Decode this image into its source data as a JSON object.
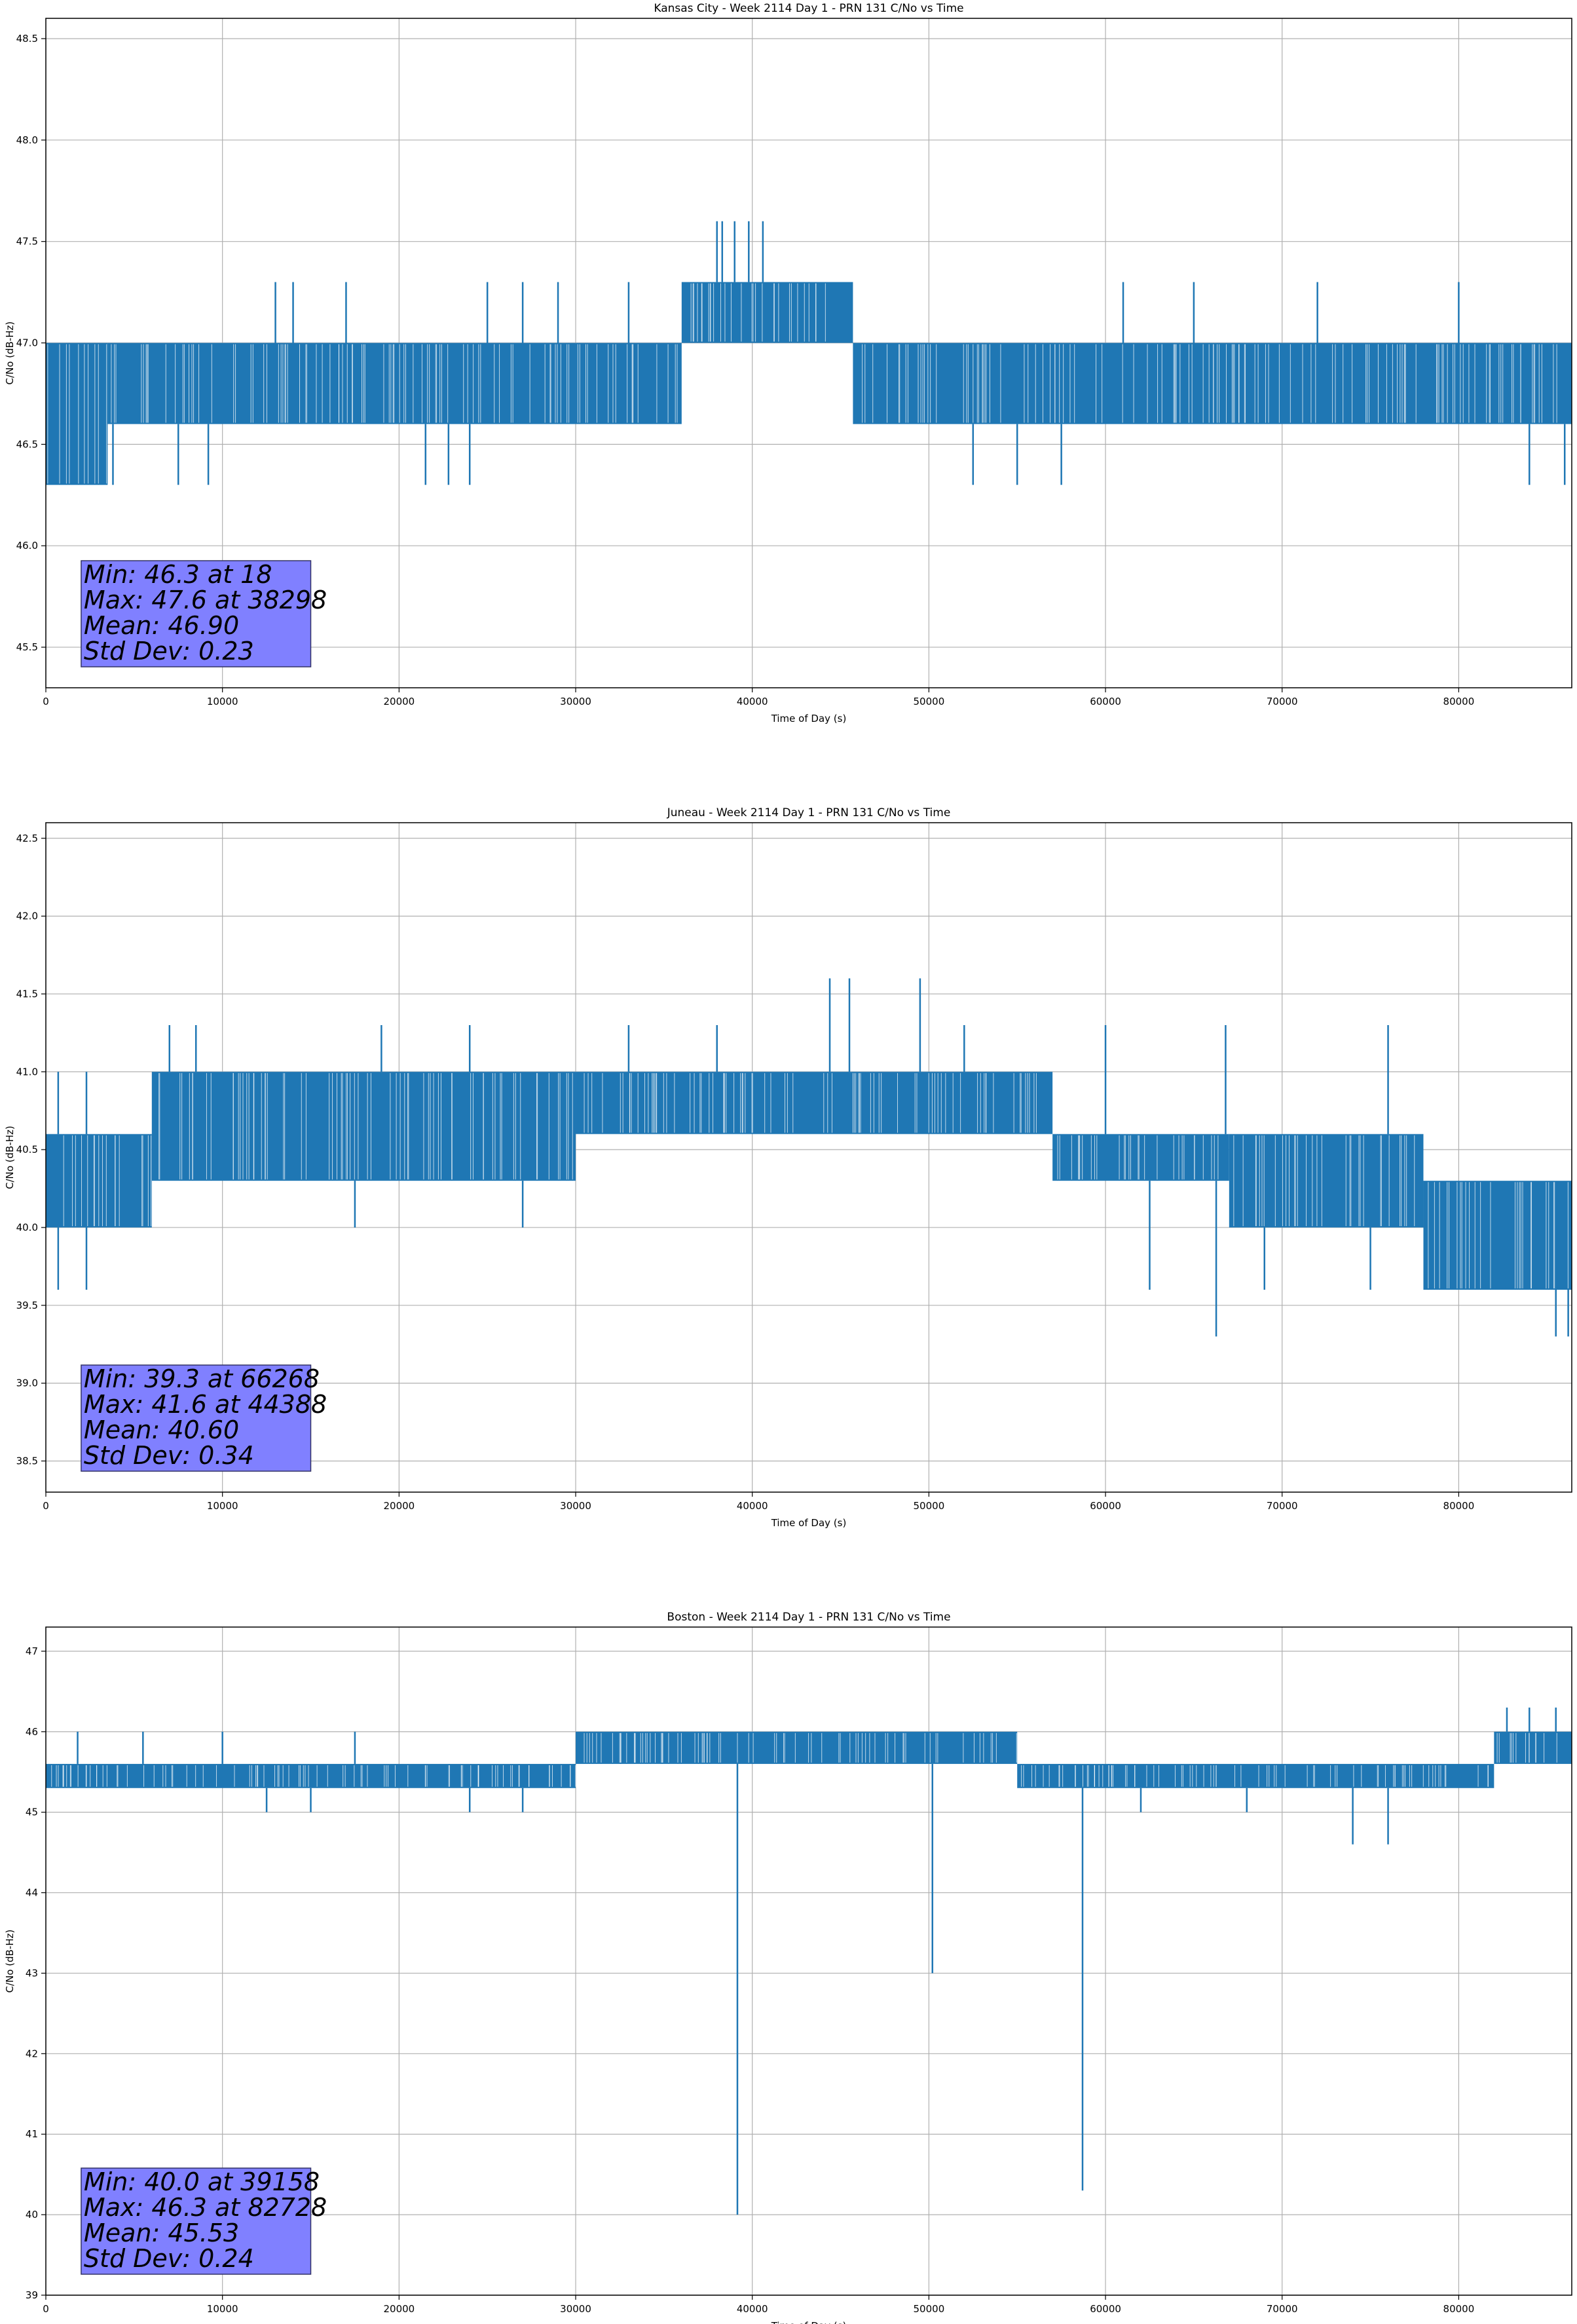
{
  "figure": {
    "background": "#ffffff",
    "line_color": "#1f77b4",
    "stats_box_color": "#8080ff"
  },
  "chart_data": [
    {
      "type": "line",
      "title": "Kansas City - Week 2114 Day 1 - PRN 131 C/No vs Time",
      "xlabel": "Time of Day (s)",
      "ylabel": "C/No (dB-Hz)",
      "xlim": [
        0,
        86400
      ],
      "ylim": [
        45.3,
        48.6
      ],
      "xticks": [
        0,
        10000,
        20000,
        30000,
        40000,
        50000,
        60000,
        70000,
        80000
      ],
      "yticks": [
        45.5,
        46.0,
        46.5,
        47.0,
        47.5,
        48.0,
        48.5
      ],
      "ytick_labels": [
        "45.5",
        "46.0",
        "46.5",
        "47.0",
        "47.5",
        "48.0",
        "48.5"
      ],
      "grid": true,
      "series": [
        {
          "bands": [
            {
              "x0": 0,
              "x1": 3500,
              "lo": 46.3,
              "hi": 47.0
            },
            {
              "x0": 3500,
              "x1": 30000,
              "lo": 46.6,
              "hi": 47.0
            },
            {
              "x0": 30000,
              "x1": 36000,
              "lo": 46.6,
              "hi": 47.0
            },
            {
              "x0": 36000,
              "x1": 45700,
              "lo": 47.0,
              "hi": 47.3
            },
            {
              "x0": 45700,
              "x1": 86400,
              "lo": 46.6,
              "hi": 47.0
            }
          ],
          "spikes": [
            {
              "x": 3800,
              "y": 46.3
            },
            {
              "x": 7500,
              "y": 46.3
            },
            {
              "x": 9200,
              "y": 46.3
            },
            {
              "x": 13000,
              "y": 47.3
            },
            {
              "x": 14000,
              "y": 47.3
            },
            {
              "x": 17000,
              "y": 47.3
            },
            {
              "x": 21500,
              "y": 46.3
            },
            {
              "x": 22800,
              "y": 46.3
            },
            {
              "x": 24000,
              "y": 46.3
            },
            {
              "x": 25000,
              "y": 47.3
            },
            {
              "x": 27000,
              "y": 47.3
            },
            {
              "x": 29000,
              "y": 47.3
            },
            {
              "x": 33000,
              "y": 47.3
            },
            {
              "x": 38000,
              "y": 47.6
            },
            {
              "x": 38298,
              "y": 47.6
            },
            {
              "x": 39000,
              "y": 47.6
            },
            {
              "x": 39800,
              "y": 47.6
            },
            {
              "x": 40600,
              "y": 47.6
            },
            {
              "x": 52500,
              "y": 46.3
            },
            {
              "x": 55000,
              "y": 46.3
            },
            {
              "x": 57500,
              "y": 46.3
            },
            {
              "x": 61000,
              "y": 47.3
            },
            {
              "x": 65000,
              "y": 47.3
            },
            {
              "x": 72000,
              "y": 47.3
            },
            {
              "x": 80000,
              "y": 47.3
            },
            {
              "x": 84000,
              "y": 46.3
            },
            {
              "x": 86000,
              "y": 46.3
            }
          ]
        }
      ],
      "stats": [
        "Min: 46.3 at 18",
        "Max: 47.6 at 38298",
        "Mean: 46.90",
        "Std Dev: 0.23"
      ]
    },
    {
      "type": "line",
      "title": "Juneau - Week 2114 Day 1 - PRN 131 C/No vs Time",
      "xlabel": "Time of Day (s)",
      "ylabel": "C/No (dB-Hz)",
      "xlim": [
        0,
        86400
      ],
      "ylim": [
        38.3,
        42.6
      ],
      "xticks": [
        0,
        10000,
        20000,
        30000,
        40000,
        50000,
        60000,
        70000,
        80000
      ],
      "yticks": [
        38.5,
        39.0,
        39.5,
        40.0,
        40.5,
        41.0,
        41.5,
        42.0,
        42.5
      ],
      "ytick_labels": [
        "38.5",
        "39.0",
        "39.5",
        "40.0",
        "40.5",
        "41.0",
        "41.5",
        "42.0",
        "42.5"
      ],
      "grid": true,
      "series": [
        {
          "bands": [
            {
              "x0": 0,
              "x1": 6000,
              "lo": 40.0,
              "hi": 40.6
            },
            {
              "x0": 6000,
              "x1": 30000,
              "lo": 40.3,
              "hi": 41.0
            },
            {
              "x0": 30000,
              "x1": 57000,
              "lo": 40.6,
              "hi": 41.0
            },
            {
              "x0": 57000,
              "x1": 67000,
              "lo": 40.3,
              "hi": 40.6
            },
            {
              "x0": 67000,
              "x1": 78000,
              "lo": 40.0,
              "hi": 40.6
            },
            {
              "x0": 78000,
              "x1": 86400,
              "lo": 39.6,
              "hi": 40.3
            }
          ],
          "spikes": [
            {
              "x": 700,
              "y": 41.0
            },
            {
              "x": 2300,
              "y": 41.0
            },
            {
              "x": 700,
              "y": 39.6
            },
            {
              "x": 2300,
              "y": 39.6
            },
            {
              "x": 7000,
              "y": 41.3
            },
            {
              "x": 8500,
              "y": 41.3
            },
            {
              "x": 17500,
              "y": 40.0
            },
            {
              "x": 19000,
              "y": 41.3
            },
            {
              "x": 24000,
              "y": 41.3
            },
            {
              "x": 27000,
              "y": 40.0
            },
            {
              "x": 33000,
              "y": 41.3
            },
            {
              "x": 38000,
              "y": 41.3
            },
            {
              "x": 44388,
              "y": 41.6
            },
            {
              "x": 45500,
              "y": 41.6
            },
            {
              "x": 49500,
              "y": 41.6
            },
            {
              "x": 52000,
              "y": 41.3
            },
            {
              "x": 60000,
              "y": 41.3
            },
            {
              "x": 62500,
              "y": 39.6
            },
            {
              "x": 66268,
              "y": 39.3
            },
            {
              "x": 66800,
              "y": 41.3
            },
            {
              "x": 69000,
              "y": 39.6
            },
            {
              "x": 76000,
              "y": 41.3
            },
            {
              "x": 75000,
              "y": 39.6
            },
            {
              "x": 85500,
              "y": 39.3
            },
            {
              "x": 86200,
              "y": 39.3
            }
          ]
        }
      ],
      "stats": [
        "Min: 39.3 at 66268",
        "Max: 41.6 at 44388",
        "Mean: 40.60",
        "Std Dev: 0.34"
      ]
    },
    {
      "type": "line",
      "title": "Boston - Week 2114 Day 1 - PRN 131 C/No vs Time",
      "xlabel": "Time of Day (s)",
      "ylabel": "C/No (dB-Hz)",
      "xlim": [
        0,
        86400
      ],
      "ylim": [
        39,
        47.3
      ],
      "xticks": [
        0,
        10000,
        20000,
        30000,
        40000,
        50000,
        60000,
        70000,
        80000
      ],
      "yticks": [
        39,
        40,
        41,
        42,
        43,
        44,
        45,
        46,
        47
      ],
      "ytick_labels": [
        "39",
        "40",
        "41",
        "42",
        "43",
        "44",
        "45",
        "46",
        "47"
      ],
      "grid": true,
      "series": [
        {
          "bands": [
            {
              "x0": 0,
              "x1": 30000,
              "lo": 45.3,
              "hi": 45.6
            },
            {
              "x0": 30000,
              "x1": 55000,
              "lo": 45.6,
              "hi": 46.0
            },
            {
              "x0": 55000,
              "x1": 82000,
              "lo": 45.3,
              "hi": 45.6
            },
            {
              "x0": 82000,
              "x1": 86400,
              "lo": 45.6,
              "hi": 46.0
            }
          ],
          "spikes": [
            {
              "x": 1800,
              "y": 46.0
            },
            {
              "x": 5500,
              "y": 46.0
            },
            {
              "x": 10000,
              "y": 46.0
            },
            {
              "x": 12500,
              "y": 45.0
            },
            {
              "x": 15000,
              "y": 45.0
            },
            {
              "x": 17500,
              "y": 46.0
            },
            {
              "x": 24000,
              "y": 45.0
            },
            {
              "x": 27000,
              "y": 45.0
            },
            {
              "x": 39158,
              "y": 40.0
            },
            {
              "x": 50200,
              "y": 43.0
            },
            {
              "x": 58700,
              "y": 40.3
            },
            {
              "x": 62000,
              "y": 45.0
            },
            {
              "x": 68000,
              "y": 45.0
            },
            {
              "x": 74000,
              "y": 44.6
            },
            {
              "x": 76000,
              "y": 44.6
            },
            {
              "x": 82728,
              "y": 46.3
            },
            {
              "x": 84000,
              "y": 46.3
            },
            {
              "x": 85500,
              "y": 46.3
            }
          ]
        }
      ],
      "stats": [
        "Min: 40.0 at 39158",
        "Max: 46.3 at 82728",
        "Mean: 45.53",
        "Std Dev: 0.24"
      ]
    }
  ]
}
